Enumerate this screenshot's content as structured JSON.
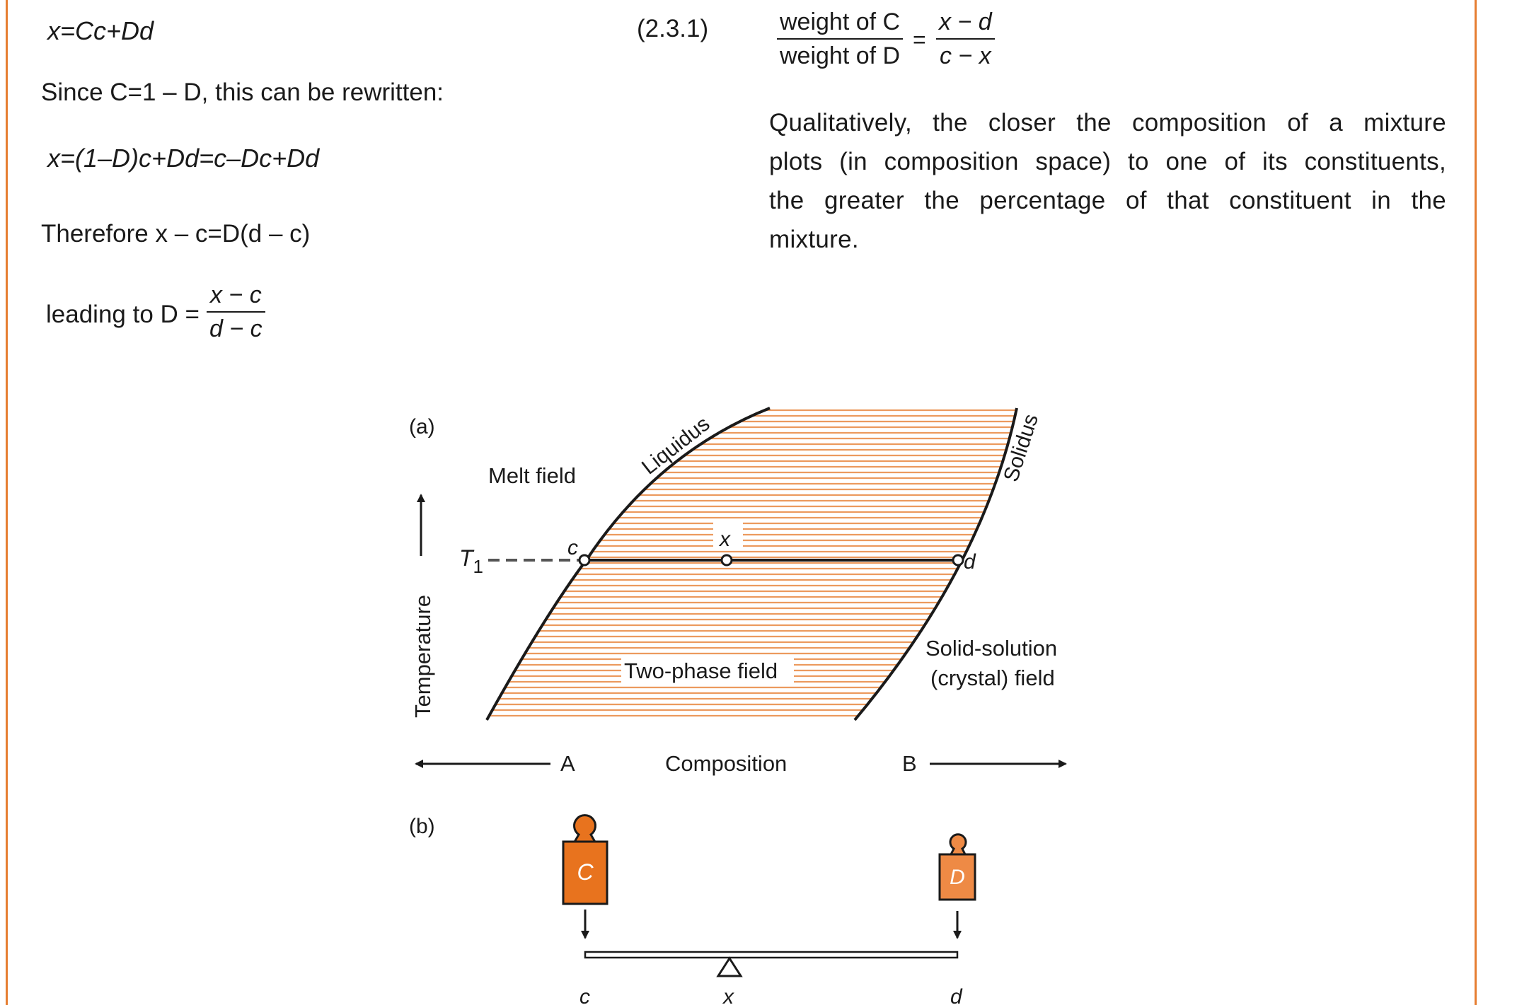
{
  "colors": {
    "accent": "#e67e32",
    "hatch": "#ec9a5e",
    "weight_c": "#e8731e",
    "weight_d": "#ee8a45",
    "text": "#1a1a1a"
  },
  "left_column": {
    "eq1": "x=Cc+Dd",
    "eq1_number": "(2.3.1)",
    "since_text": "Since C=1 – D, this can be rewritten:",
    "eq2": "x=(1–D)c+Dd=c–Dc+Dd",
    "therefore_text": "Therefore x – c=D(d – c)",
    "leading_prefix": "leading to D =",
    "leading_num": "x − c",
    "leading_den": "d − c"
  },
  "right_column": {
    "ratio_num_left": "weight of C",
    "ratio_den_left": "weight of D",
    "ratio_eq": "=",
    "ratio_num_right": "x − d",
    "ratio_den_right": "c − x",
    "paragraph_lines": [
      "Qualitatively, the closer the composition of a mixture",
      "plots (in composition space) to one of its constituents,",
      "the greater the percentage of that constituent in the",
      "mixture."
    ]
  },
  "figure": {
    "panel_a": "(a)",
    "panel_b": "(b)",
    "melt_field": "Melt field",
    "liquidus": "Liquidus",
    "solidus": "Solidus",
    "two_phase": "Two-phase field",
    "solid_solution_1": "Solid-solution",
    "solid_solution_2": "(crystal) field",
    "temperature": "Temperature",
    "t1_base": "T",
    "t1_sub": "1",
    "point_c": "c",
    "point_x": "x",
    "point_d": "d",
    "axis_a": "A",
    "axis_b": "B",
    "composition": "Composition",
    "weight_c_label": "C",
    "weight_d_label": "D",
    "lever_c": "c",
    "lever_x": "x",
    "lever_d": "d"
  }
}
